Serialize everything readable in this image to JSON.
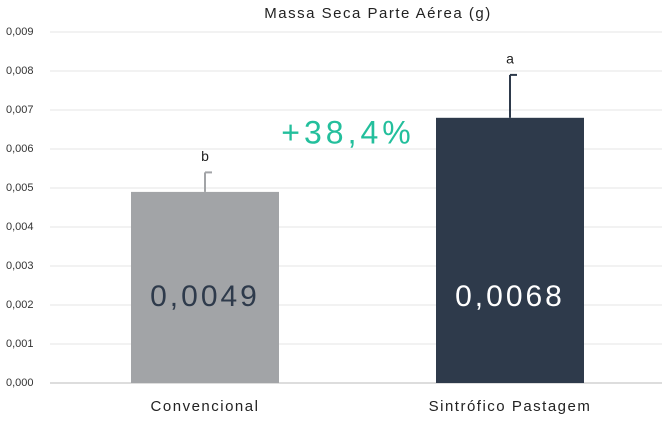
{
  "chart_data": {
    "type": "bar",
    "title": "Massa Seca Parte Aérea (g)",
    "categories": [
      "Convencional",
      "Sintrófico Pastagem"
    ],
    "values": [
      0.0049,
      0.0068
    ],
    "value_labels": [
      "0,0049",
      "0,0068"
    ],
    "errors": [
      0.0005,
      0.0011
    ],
    "letters": [
      "b",
      "a"
    ],
    "colors": [
      "#a2a4a7",
      "#2e3a4b"
    ],
    "value_label_colors": [
      "#2e3a4b",
      "#ffffff"
    ],
    "annotation": "+38,4%",
    "ylim": [
      0,
      0.009
    ],
    "yticks": [
      {
        "value": 0,
        "label": "0,000"
      },
      {
        "value": 0.001,
        "label": "0,001"
      },
      {
        "value": 0.002,
        "label": "0,002"
      },
      {
        "value": 0.003,
        "label": "0,003"
      },
      {
        "value": 0.004,
        "label": "0,004"
      },
      {
        "value": 0.005,
        "label": "0,005"
      },
      {
        "value": 0.006,
        "label": "0,006"
      },
      {
        "value": 0.007,
        "label": "0,007"
      },
      {
        "value": 0.008,
        "label": "0,008"
      },
      {
        "value": 0.009,
        "label": "0,009"
      }
    ],
    "grid": true
  }
}
